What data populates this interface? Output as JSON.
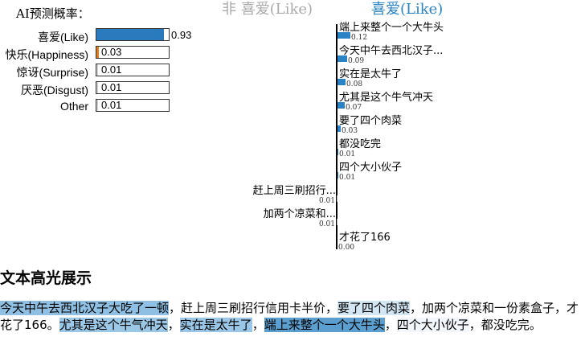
{
  "prob_panel": {
    "title": "AI预测概率：",
    "items": [
      {
        "label": "喜爱(Like)",
        "value": 0.93,
        "value_text": "0.93",
        "color": "#2a7bbd"
      },
      {
        "label": "快乐(Happiness)",
        "value": 0.03,
        "value_text": "0.03",
        "color": "#e07b1a"
      },
      {
        "label": "惊讶(Surprise)",
        "value": 0.01,
        "value_text": "0.01",
        "color": "#cccccc"
      },
      {
        "label": "厌恶(Disgust)",
        "value": 0.01,
        "value_text": "0.01",
        "color": "#cccccc"
      },
      {
        "label": "Other",
        "value": 0.01,
        "value_text": "0.01",
        "color": "#cccccc"
      }
    ]
  },
  "word_chart": {
    "neg_header": "非 喜爱(Like)",
    "pos_header": "喜爱(Like)",
    "pos_color": "#2a83c4",
    "neg_color": "#aaaaaa",
    "items": [
      {
        "label": "端上来整个一个大牛头",
        "value": 0.12,
        "value_text": "0.12",
        "side": "pos"
      },
      {
        "label": "今天中午去西北汉子...",
        "value": 0.09,
        "value_text": "0.09",
        "side": "pos"
      },
      {
        "label": "实在是太牛了",
        "value": 0.08,
        "value_text": "0.08",
        "side": "pos"
      },
      {
        "label": "尤其是这个牛气冲天",
        "value": 0.07,
        "value_text": "0.07",
        "side": "pos"
      },
      {
        "label": "要了四个肉菜",
        "value": 0.03,
        "value_text": "0.03",
        "side": "pos"
      },
      {
        "label": "都没吃完",
        "value": 0.01,
        "value_text": "0.01",
        "side": "pos"
      },
      {
        "label": "四个大小伙子",
        "value": 0.01,
        "value_text": "0.01",
        "side": "pos"
      },
      {
        "label": "赶上周三刷招行...",
        "value": 0.01,
        "value_text": "0.01",
        "side": "neg"
      },
      {
        "label": "加两个凉菜和...",
        "value": 0.01,
        "value_text": "0.01",
        "side": "neg"
      },
      {
        "label": "才花了166",
        "value": 0.0,
        "value_text": "0.00",
        "side": "pos"
      }
    ]
  },
  "highlight": {
    "title": "文本高光展示",
    "segments": [
      {
        "text": "今天中午去西北汉子大吃了一顿",
        "color": "#8fc0e3"
      },
      {
        "text": "，赶上周三刷招行信用卡半价，",
        "color": ""
      },
      {
        "text": "要了四个肉菜",
        "color": "#d3e6f4"
      },
      {
        "text": "，加两个凉菜和一份素盒子，才花了166。",
        "color": ""
      },
      {
        "text": "尤其是这个牛气冲天",
        "color": "#9cc8e8"
      },
      {
        "text": "，",
        "color": ""
      },
      {
        "text": "实在是太牛了",
        "color": "#9ac6e7"
      },
      {
        "text": "，",
        "color": ""
      },
      {
        "text": "端上来整个一个大牛头",
        "color": "#5b9fd0"
      },
      {
        "text": "，",
        "color": ""
      },
      {
        "text": "四个大小伙子",
        "color": "#f1f7fc"
      },
      {
        "text": "，都没吃完。",
        "color": ""
      }
    ]
  }
}
